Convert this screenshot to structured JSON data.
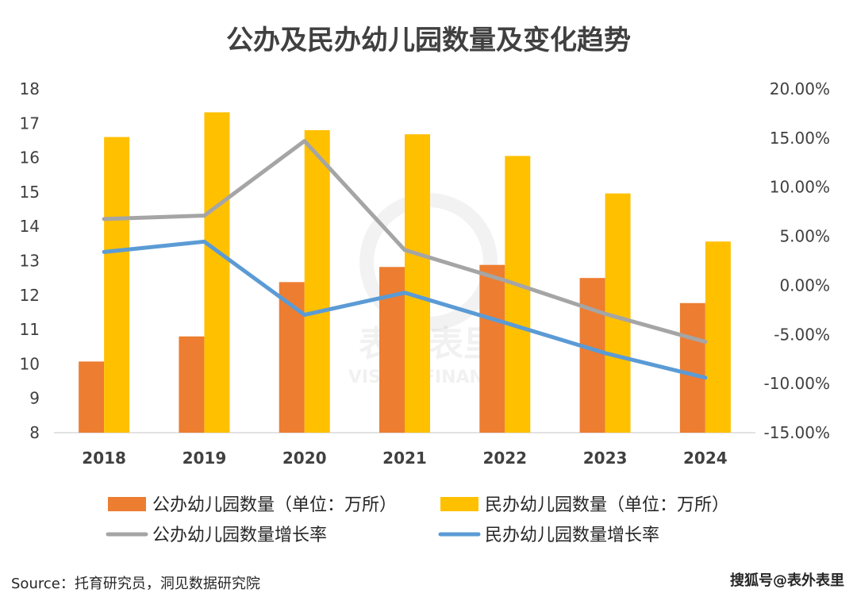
{
  "chart_data": {
    "type": "bar",
    "title": "公办及民办幼儿园数量及变化趋势",
    "categories": [
      "2018",
      "2019",
      "2020",
      "2021",
      "2022",
      "2023",
      "2024"
    ],
    "ylim": [
      8,
      18
    ],
    "y_ticks": [
      "18",
      "17",
      "16",
      "15",
      "14",
      "13",
      "12",
      "11",
      "10",
      "9",
      "8"
    ],
    "y2lim": [
      -0.15,
      0.2
    ],
    "y2_ticks": [
      "20.00%",
      "15.00%",
      "10.00%",
      "5.00%",
      "0.00%",
      "-5.00%",
      "-10.00%",
      "-15.00%"
    ],
    "series": [
      {
        "name": "公办幼儿园数量（单位：万所）",
        "type": "bar",
        "axis": "left",
        "color": "#ED7D31",
        "values": [
          10.07,
          10.8,
          12.38,
          12.82,
          12.88,
          12.5,
          11.77
        ]
      },
      {
        "name": "民办幼儿园数量（单位：万所）",
        "type": "bar",
        "axis": "left",
        "color": "#FFC000",
        "values": [
          16.6,
          17.32,
          16.8,
          16.68,
          16.05,
          14.96,
          13.56
        ]
      },
      {
        "name": "公办幼儿园数量增长率",
        "type": "line",
        "axis": "right",
        "color": "#A5A5A5",
        "values": [
          0.0675,
          0.071,
          0.147,
          0.036,
          0.005,
          -0.029,
          -0.0575
        ]
      },
      {
        "name": "民办幼儿园数量增长率",
        "type": "line",
        "axis": "right",
        "color": "#5B9BD5",
        "values": [
          0.034,
          0.0445,
          -0.03,
          -0.0075,
          -0.038,
          -0.069,
          -0.094
        ]
      }
    ],
    "grid": false,
    "legend_position": "bottom"
  },
  "watermark": {
    "cn": "表外表里",
    "en": "VISION FINANCE"
  },
  "source_text": "Source：托育研究员，洞见数据研究院",
  "credit_text": "搜狐号@表外表里"
}
